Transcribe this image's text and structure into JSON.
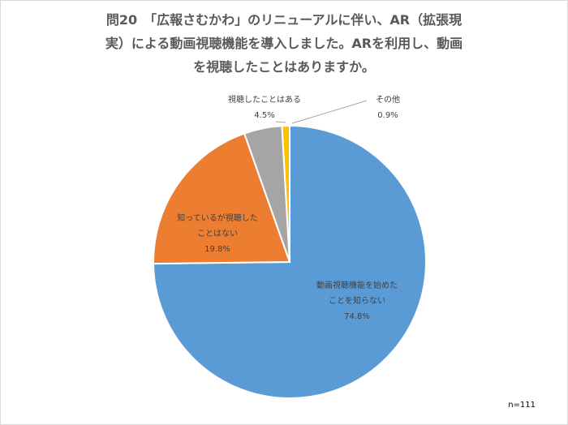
{
  "title_lines": [
    "問20　「広報さむかわ」のリニューアルに伴い、AR（拡張現",
    "実）による動画視聴機能を導入しました。ARを利用し、動画",
    "を視聴したことはありますか。"
  ],
  "n_label": "n=111",
  "colors": {
    "series": [
      "#5b9bd5",
      "#ed7d31",
      "#a5a5a5",
      "#ffc000"
    ],
    "background": "#ffffff",
    "title": "#595959"
  },
  "chart_data": {
    "type": "pie",
    "slices": [
      {
        "label_lines": [
          "動画視聴機能を始めた",
          "ことを知らない"
        ],
        "value": 74.8,
        "display": "74.8%"
      },
      {
        "label_lines": [
          "知っているが視聴した",
          "ことはない"
        ],
        "value": 19.8,
        "display": "19.8%"
      },
      {
        "label_lines": [
          "視聴したことはある"
        ],
        "value": 4.5,
        "display": "4.5%"
      },
      {
        "label_lines": [
          "その他"
        ],
        "value": 0.9,
        "display": "0.9%"
      }
    ]
  }
}
